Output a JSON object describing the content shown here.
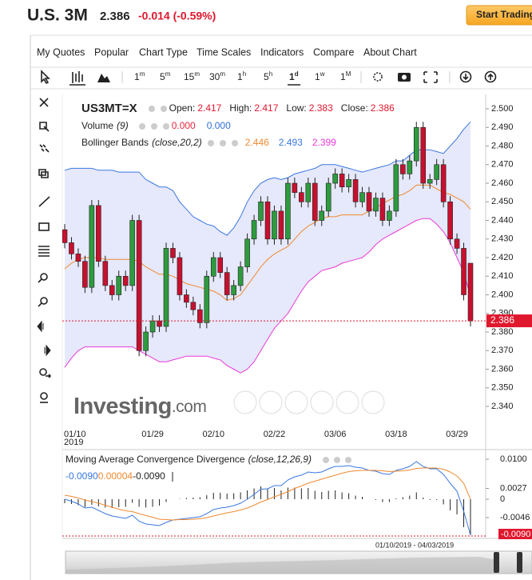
{
  "header": {
    "title": "U.S. 3M",
    "price": 2.386,
    "change": "-0.014 (-0.59%)",
    "button": "Start Trading"
  },
  "menu": [
    "My Quotes",
    "Popular",
    "Chart Type",
    "Time Scales",
    "Indicators",
    "Compare",
    "About Chart"
  ],
  "time_scales": [
    {
      "num": "1",
      "unit": "m"
    },
    {
      "num": "5",
      "unit": "m"
    },
    {
      "num": "15",
      "unit": "m"
    },
    {
      "num": "30",
      "unit": "m"
    },
    {
      "num": "1",
      "unit": "h"
    },
    {
      "num": "5",
      "unit": "h"
    },
    {
      "num": "1",
      "unit": "d"
    },
    {
      "num": "1",
      "unit": "w"
    },
    {
      "num": "1",
      "unit": "M"
    }
  ],
  "selected_time_scale": 6,
  "watermark": {
    "brand": "Investing",
    "suffix": ".com"
  },
  "navigator": {
    "range": "01/10/2019 - 04/03/2019"
  },
  "chart_data": [
    {
      "type": "candlestick",
      "title": "US3MT=X",
      "open_label": "Open:",
      "high_label": "High:",
      "low_label": "Low:",
      "close_label": "Close:",
      "categories": [
        "01/10",
        null,
        null,
        null,
        null,
        null,
        null,
        null,
        null,
        null,
        null,
        null,
        null,
        "01/29",
        null,
        null,
        null,
        null,
        null,
        null,
        null,
        null,
        "02/10",
        null,
        null,
        null,
        null,
        null,
        null,
        null,
        null,
        "02/22",
        null,
        null,
        null,
        null,
        null,
        null,
        null,
        null,
        "03/06",
        null,
        null,
        null,
        null,
        null,
        null,
        null,
        null,
        "03/18",
        null,
        null,
        null,
        null,
        null,
        null,
        null,
        null,
        "03/29",
        null,
        null
      ],
      "x_year_label": "2019",
      "open": [
        2.435,
        2.428,
        2.422,
        2.418,
        2.404,
        2.448,
        2.418,
        2.405,
        2.4,
        2.41,
        2.405,
        2.44,
        2.37,
        2.38,
        2.386,
        2.383,
        2.425,
        2.42,
        2.4,
        2.396,
        2.392,
        2.385,
        2.41,
        2.42,
        2.412,
        2.4,
        2.405,
        2.415,
        2.43,
        2.44,
        2.45,
        2.43,
        2.445,
        2.43,
        2.46,
        2.455,
        2.45,
        2.46,
        2.44,
        2.445,
        2.46,
        2.465,
        2.458,
        2.462,
        2.45,
        2.455,
        2.445,
        2.452,
        2.44,
        2.445,
        2.47,
        2.465,
        2.472,
        2.49,
        2.46,
        2.462,
        2.47,
        2.45,
        2.43,
        2.425,
        2.417
      ],
      "high": [
        2.438,
        2.431,
        2.425,
        2.421,
        2.451,
        2.451,
        2.421,
        2.408,
        2.413,
        2.413,
        2.443,
        2.443,
        2.383,
        2.389,
        2.389,
        2.428,
        2.428,
        2.423,
        2.403,
        2.399,
        2.395,
        2.413,
        2.423,
        2.423,
        2.415,
        2.408,
        2.418,
        2.433,
        2.443,
        2.453,
        2.453,
        2.448,
        2.448,
        2.463,
        2.463,
        2.458,
        2.463,
        2.463,
        2.448,
        2.463,
        2.468,
        2.468,
        2.465,
        2.465,
        2.458,
        2.458,
        2.455,
        2.455,
        2.448,
        2.473,
        2.473,
        2.475,
        2.493,
        2.493,
        2.465,
        2.473,
        2.473,
        2.453,
        2.433,
        2.428,
        2.417
      ],
      "low": [
        2.425,
        2.419,
        2.415,
        2.401,
        2.401,
        2.415,
        2.402,
        2.397,
        2.397,
        2.402,
        2.402,
        2.367,
        2.367,
        2.377,
        2.38,
        2.38,
        2.417,
        2.397,
        2.393,
        2.389,
        2.382,
        2.382,
        2.407,
        2.409,
        2.397,
        2.397,
        2.402,
        2.412,
        2.427,
        2.437,
        2.427,
        2.427,
        2.427,
        2.427,
        2.452,
        2.447,
        2.447,
        2.437,
        2.437,
        2.442,
        2.457,
        2.455,
        2.455,
        2.447,
        2.447,
        2.442,
        2.442,
        2.437,
        2.437,
        2.442,
        2.462,
        2.462,
        2.469,
        2.457,
        2.457,
        2.459,
        2.447,
        2.427,
        2.422,
        2.397,
        2.383
      ],
      "close": [
        2.428,
        2.422,
        2.418,
        2.404,
        2.448,
        2.418,
        2.405,
        2.4,
        2.41,
        2.405,
        2.44,
        2.37,
        2.38,
        2.386,
        2.383,
        2.425,
        2.42,
        2.4,
        2.396,
        2.392,
        2.385,
        2.41,
        2.42,
        2.412,
        2.4,
        2.405,
        2.415,
        2.43,
        2.44,
        2.45,
        2.43,
        2.445,
        2.43,
        2.46,
        2.455,
        2.45,
        2.46,
        2.44,
        2.445,
        2.46,
        2.465,
        2.458,
        2.462,
        2.45,
        2.455,
        2.445,
        2.452,
        2.44,
        2.445,
        2.47,
        2.465,
        2.472,
        2.49,
        2.46,
        2.462,
        2.47,
        2.45,
        2.43,
        2.425,
        2.4,
        2.386
      ],
      "up_color": "#2e9b3e",
      "down_color": "#c8102e",
      "volume": {
        "name": "Volume",
        "params": "(9)",
        "values": [
          {
            "value": 0,
            "label": "0.000"
          },
          {
            "value": 0,
            "label": "0.000"
          }
        ],
        "colors": [
          "#e8263d",
          "#2f6fd6"
        ]
      },
      "bollinger": {
        "name": "Bollinger Bands",
        "params": "(close,20,2)",
        "middle_color": "#f08a30",
        "upper_color": "#3a78e0",
        "lower_color": "#e83ad8",
        "fill": "#e6e8fb",
        "upper": [
          2.467,
          2.468,
          2.468,
          2.468,
          2.468,
          2.467,
          2.467,
          2.467,
          2.466,
          2.466,
          2.466,
          2.466,
          2.462,
          2.46,
          2.458,
          2.458,
          2.456,
          2.45,
          2.446,
          2.442,
          2.44,
          2.438,
          2.437,
          2.434,
          2.432,
          2.436,
          2.442,
          2.45,
          2.456,
          2.46,
          2.462,
          2.463,
          2.462,
          2.463,
          2.465,
          2.466,
          2.467,
          2.468,
          2.47,
          2.47,
          2.47,
          2.469,
          2.468,
          2.467,
          2.466,
          2.467,
          2.468,
          2.469,
          2.47,
          2.472,
          2.472,
          2.475,
          2.478,
          2.478,
          2.478,
          2.477,
          2.476,
          2.48,
          2.484,
          2.489,
          2.493
        ],
        "middle": [
          2.414,
          2.417,
          2.419,
          2.42,
          2.42,
          2.42,
          2.419,
          2.419,
          2.419,
          2.419,
          2.419,
          2.418,
          2.415,
          2.413,
          2.411,
          2.411,
          2.41,
          2.408,
          2.406,
          2.405,
          2.404,
          2.403,
          2.402,
          2.4,
          2.397,
          2.398,
          2.4,
          2.405,
          2.41,
          2.415,
          2.419,
          2.422,
          2.424,
          2.426,
          2.43,
          2.434,
          2.437,
          2.439,
          2.441,
          2.442,
          2.442,
          2.443,
          2.443,
          2.443,
          2.443,
          2.445,
          2.447,
          2.449,
          2.451,
          2.453,
          2.454,
          2.456,
          2.459,
          2.459,
          2.459,
          2.457,
          2.455,
          2.454,
          2.452,
          2.45,
          2.446
        ],
        "lower": [
          2.361,
          2.366,
          2.37,
          2.372,
          2.372,
          2.372,
          2.372,
          2.372,
          2.372,
          2.372,
          2.372,
          2.37,
          2.368,
          2.366,
          2.364,
          2.364,
          2.365,
          2.366,
          2.367,
          2.367,
          2.367,
          2.367,
          2.366,
          2.365,
          2.362,
          2.36,
          2.358,
          2.36,
          2.364,
          2.37,
          2.376,
          2.382,
          2.386,
          2.39,
          2.396,
          2.402,
          2.407,
          2.41,
          2.413,
          2.414,
          2.415,
          2.417,
          2.418,
          2.419,
          2.42,
          2.423,
          2.427,
          2.43,
          2.432,
          2.434,
          2.436,
          2.438,
          2.44,
          2.441,
          2.441,
          2.438,
          2.434,
          2.428,
          2.42,
          2.412,
          2.399
        ]
      },
      "ylim": [
        2.3314,
        2.5069
      ],
      "yticks": [
        {
          "value": 2.5,
          "label": "2.500"
        },
        {
          "value": 2.49,
          "label": "2.490"
        },
        {
          "value": 2.48,
          "label": "2.480"
        },
        {
          "value": 2.47,
          "label": "2.470"
        },
        {
          "value": 2.46,
          "label": "2.460"
        },
        {
          "value": 2.45,
          "label": "2.450"
        },
        {
          "value": 2.44,
          "label": "2.440"
        },
        {
          "value": 2.43,
          "label": "2.430"
        },
        {
          "value": 2.42,
          "label": "2.420"
        },
        {
          "value": 2.41,
          "label": "2.410"
        },
        {
          "value": 2.4,
          "label": "2.400"
        },
        {
          "value": 2.39,
          "label": "2.390"
        },
        {
          "value": 2.38,
          "label": "2.380"
        },
        {
          "value": 2.37,
          "label": "2.370"
        },
        {
          "value": 2.36,
          "label": "2.360"
        },
        {
          "value": 2.35,
          "label": "2.350"
        },
        {
          "value": 2.34,
          "label": "2.340"
        }
      ],
      "last_price_color": "#e0182e"
    },
    {
      "type": "macd",
      "title": "Moving Average Convergence Divergence",
      "params": "(close,12,26,9)",
      "legend_values": [
        {
          "value": -0.009,
          "label": "-0.0090"
        },
        {
          "value": 4e-05,
          "label": "0.00004"
        },
        {
          "value": -0.009,
          "label": "-0.0090"
        }
      ],
      "series": [
        {
          "name": "MACD",
          "color": "#3a78e0",
          "values": [
            0.0,
            -0.0005,
            -0.0012,
            -0.0022,
            -0.002,
            -0.0028,
            -0.0036,
            -0.0042,
            -0.0045,
            -0.0048,
            -0.004,
            -0.0055,
            -0.0062,
            -0.0064,
            -0.0066,
            -0.0058,
            -0.0052,
            -0.005,
            -0.0048,
            -0.0046,
            -0.0044,
            -0.0036,
            -0.0026,
            -0.0022,
            -0.002,
            -0.0016,
            -0.001,
            0.0,
            0.0012,
            0.0025,
            0.0026,
            0.0034,
            0.0034,
            0.0048,
            0.0056,
            0.006,
            0.0068,
            0.0066,
            0.0068,
            0.0076,
            0.0082,
            0.0082,
            0.0084,
            0.008,
            0.0078,
            0.0072,
            0.007,
            0.0064,
            0.0062,
            0.0072,
            0.0076,
            0.0082,
            0.0094,
            0.0082,
            0.0076,
            0.0076,
            0.0062,
            0.004,
            0.002,
            -0.003,
            -0.009
          ]
        },
        {
          "name": "Signal",
          "color": "#f08a30",
          "values": [
            0.001,
            0.0007,
            0.0003,
            -0.0002,
            -0.0006,
            -0.001,
            -0.0015,
            -0.002,
            -0.0025,
            -0.0029,
            -0.0031,
            -0.0036,
            -0.0041,
            -0.0045,
            -0.005,
            -0.0051,
            -0.0052,
            -0.0051,
            -0.0051,
            -0.005,
            -0.0049,
            -0.0046,
            -0.0042,
            -0.0038,
            -0.0034,
            -0.0031,
            -0.0027,
            -0.0022,
            -0.0015,
            -0.0007,
            -0.0001,
            0.0006,
            0.0012,
            0.0019,
            0.0027,
            0.0033,
            0.004,
            0.0045,
            0.005,
            0.0055,
            0.006,
            0.0065,
            0.0069,
            0.0071,
            0.0072,
            0.0072,
            0.0072,
            0.0071,
            0.0069,
            0.007,
            0.0071,
            0.0073,
            0.0077,
            0.0078,
            0.0078,
            0.0078,
            0.0075,
            0.0068,
            0.0058,
            0.004,
            4e-05
          ]
        },
        {
          "name": "Histogram",
          "color": "#222222",
          "values": [
            -0.001,
            -0.0012,
            -0.0015,
            -0.002,
            -0.0014,
            -0.0018,
            -0.0021,
            -0.0022,
            -0.002,
            -0.0019,
            -0.0009,
            -0.0019,
            -0.0021,
            -0.0019,
            -0.0016,
            -0.0007,
            0.0,
            0.0001,
            0.0003,
            0.0004,
            0.0005,
            0.001,
            0.0016,
            0.0016,
            0.0014,
            0.0015,
            0.0017,
            0.0022,
            0.0027,
            0.0032,
            0.0027,
            0.0028,
            0.0022,
            0.0029,
            0.0029,
            0.0027,
            0.0028,
            0.0021,
            0.0018,
            0.0021,
            0.0022,
            0.0017,
            0.0015,
            0.0009,
            0.0006,
            0.0,
            -0.0002,
            -0.0007,
            -0.0007,
            0.0002,
            0.0005,
            0.0009,
            0.0017,
            0.0004,
            -0.0002,
            -0.0002,
            -0.0013,
            -0.0028,
            -0.0038,
            -0.007,
            -0.009
          ]
        }
      ],
      "ylim": [
        -0.0096,
        0.0118
      ],
      "yticks": [
        {
          "value": 0.01,
          "label": "0.0100"
        },
        0.0027,
        0,
        -0.0046
      ]
    }
  ]
}
